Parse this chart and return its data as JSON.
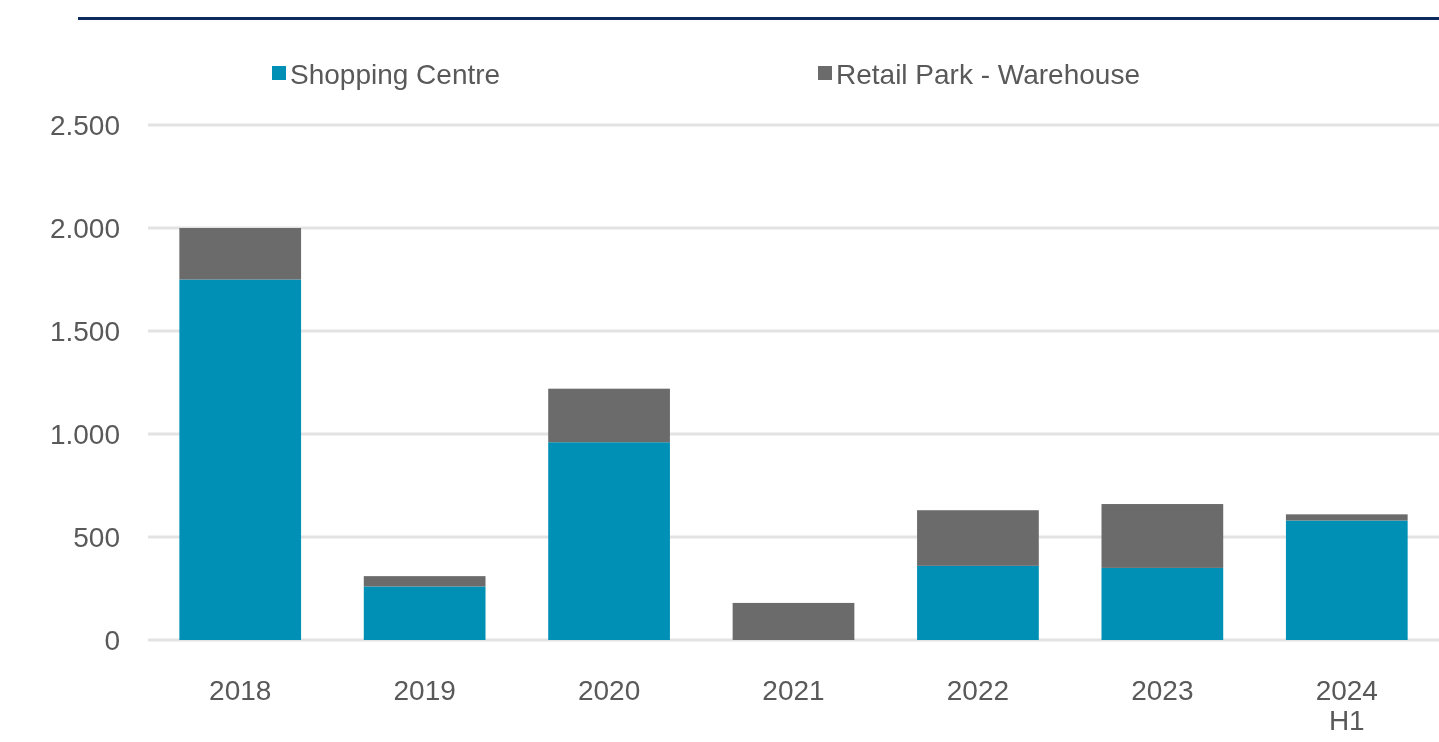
{
  "chart_data": {
    "type": "bar",
    "stacked": true,
    "categories": [
      "2018",
      "2019",
      "2020",
      "2021",
      "2022",
      "2023",
      "2024\nH1"
    ],
    "series": [
      {
        "name": "Shopping Centre",
        "color": "#0090b5",
        "values": [
          1750,
          260,
          960,
          0,
          360,
          350,
          580
        ]
      },
      {
        "name": "Retail Park - Warehouse",
        "color": "#6b6b6b",
        "values": [
          250,
          50,
          260,
          180,
          270,
          310,
          30
        ]
      }
    ],
    "ylim": [
      0,
      2500
    ],
    "yticks": [
      {
        "value": 0,
        "label": "0"
      },
      {
        "value": 500,
        "label": "500"
      },
      {
        "value": 1000,
        "label": "1.000"
      },
      {
        "value": 1500,
        "label": "1.500"
      },
      {
        "value": 2000,
        "label": "2.000"
      },
      {
        "value": 2500,
        "label": "2.500"
      }
    ],
    "grid": "y",
    "legend": "top"
  }
}
